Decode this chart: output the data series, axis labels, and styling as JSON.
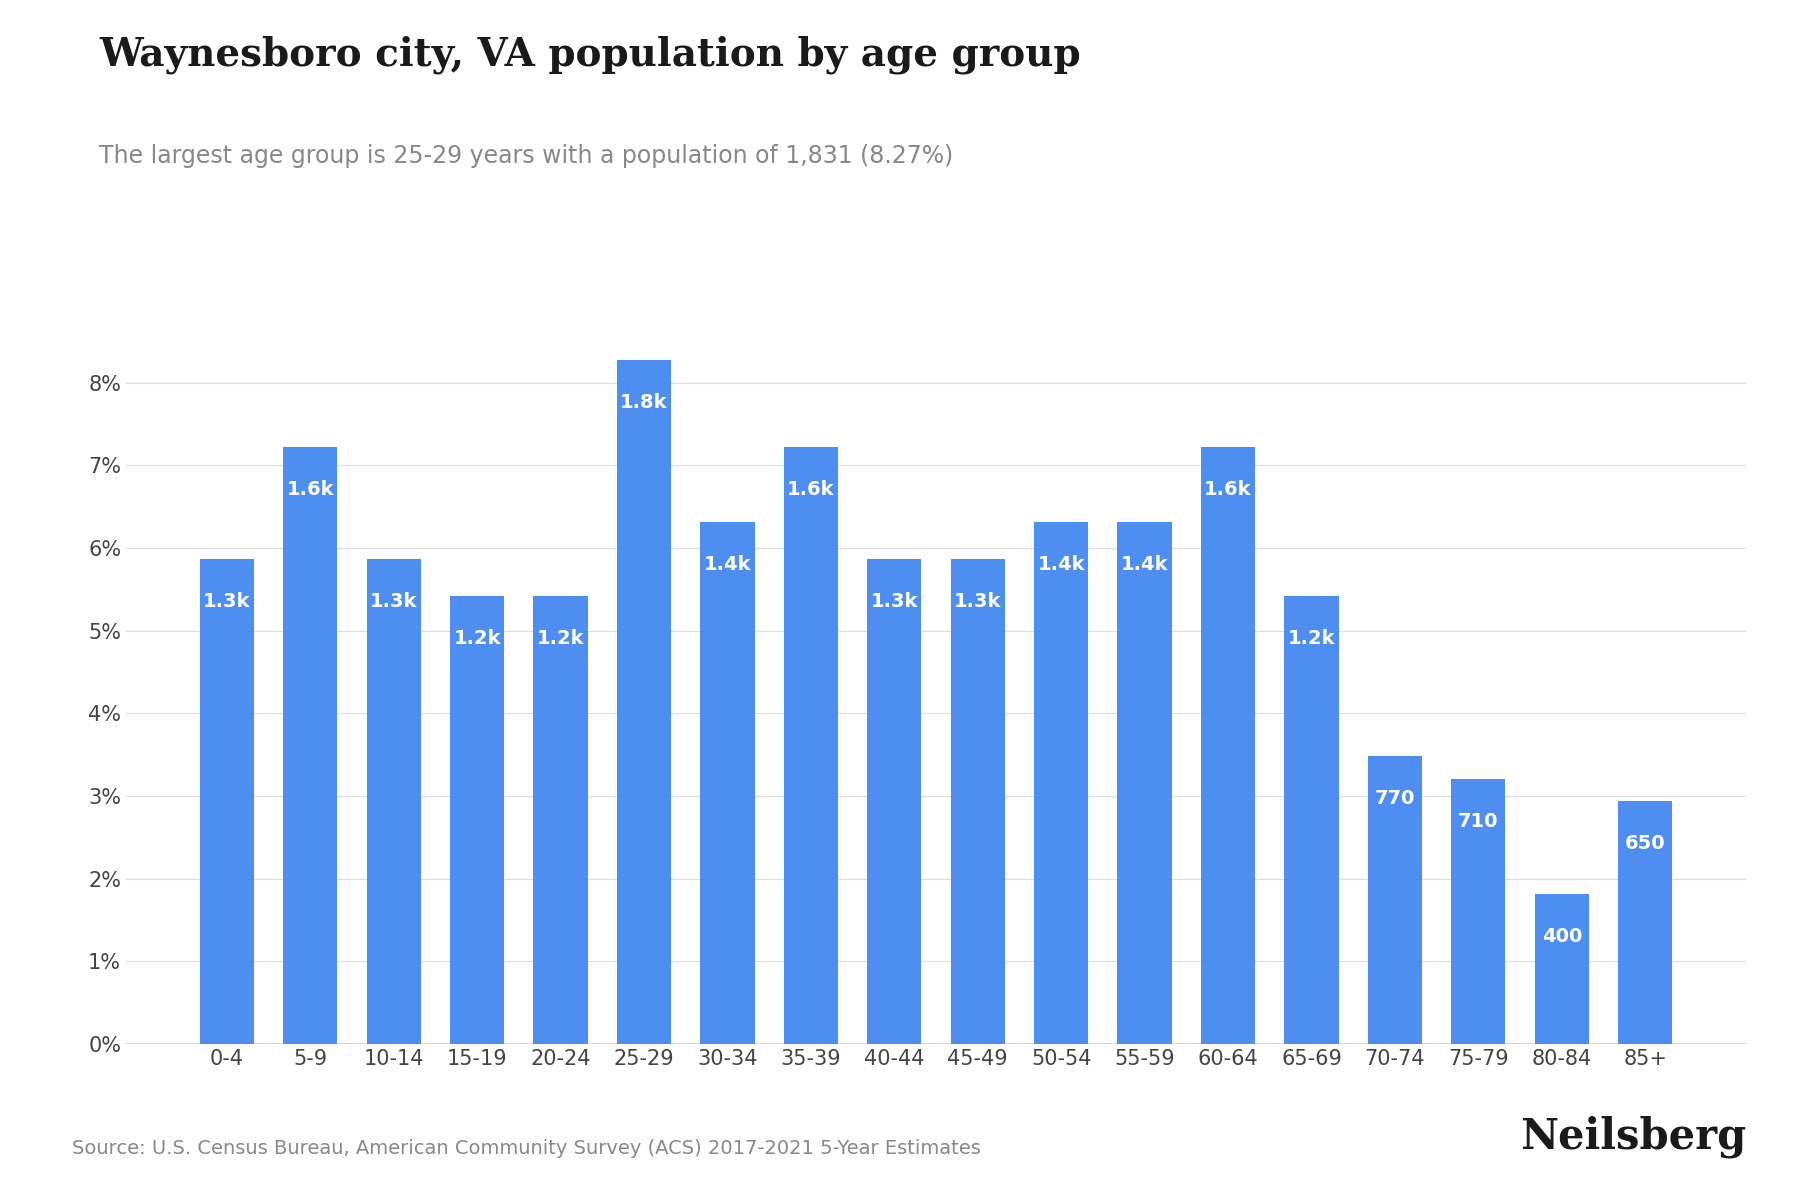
{
  "title": "Waynesboro city, VA population by age group",
  "subtitle": "The largest age group is 25-29 years with a population of 1,831 (8.27%)",
  "source": "Source: U.S. Census Bureau, American Community Survey (ACS) 2017-2021 5-Year Estimates",
  "branding": "Neilsberg",
  "categories": [
    "0-4",
    "5-9",
    "10-14",
    "15-19",
    "20-24",
    "25-29",
    "30-34",
    "35-39",
    "40-44",
    "45-49",
    "50-54",
    "55-59",
    "60-64",
    "65-69",
    "70-74",
    "75-79",
    "80-84",
    "85+"
  ],
  "values": [
    1300,
    1600,
    1300,
    1200,
    1200,
    1831,
    1400,
    1600,
    1300,
    1300,
    1400,
    1400,
    1600,
    1200,
    770,
    710,
    400,
    650
  ],
  "pct_values": [
    0.0587,
    0.0722,
    0.0587,
    0.0542,
    0.0542,
    0.0827,
    0.0632,
    0.0722,
    0.0587,
    0.0587,
    0.0632,
    0.0632,
    0.0722,
    0.0542,
    0.0348,
    0.0321,
    0.0181,
    0.0294
  ],
  "bar_color": "#4d8ef0",
  "label_color": "#ffffff",
  "title_color": "#1a1a1a",
  "subtitle_color": "#888888",
  "source_color": "#888888",
  "background_color": "#ffffff",
  "ylim": [
    0,
    0.09
  ],
  "yticks": [
    0.0,
    0.01,
    0.02,
    0.03,
    0.04,
    0.05,
    0.06,
    0.07,
    0.08
  ],
  "title_fontsize": 28,
  "subtitle_fontsize": 17,
  "source_fontsize": 14,
  "branding_fontsize": 30,
  "label_fontsize": 14,
  "tick_fontsize": 15
}
